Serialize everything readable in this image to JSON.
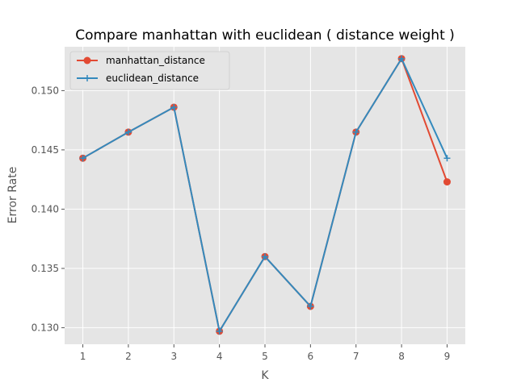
{
  "chart_data": {
    "type": "line",
    "title": "Compare manhattan  with  euclidean ( distance weight )",
    "xlabel": "K",
    "ylabel": "Error Rate",
    "x": [
      1,
      2,
      3,
      4,
      5,
      6,
      7,
      8,
      9
    ],
    "xlim": [
      0.6,
      9.4
    ],
    "ylim": [
      0.1286,
      0.1537
    ],
    "yticks": [
      "0.130",
      "0.135",
      "0.140",
      "0.145",
      "0.150"
    ],
    "ytick_values": [
      0.13,
      0.135,
      0.14,
      0.145,
      0.15
    ],
    "xticks": [
      "1",
      "2",
      "3",
      "4",
      "5",
      "6",
      "7",
      "8",
      "9"
    ],
    "grid": true,
    "legend_position": "top-left",
    "series": [
      {
        "name": "manhattan_distance",
        "color": "#E24A33",
        "marker": "circle",
        "values": [
          0.1443,
          0.1465,
          0.1486,
          0.1297,
          0.136,
          0.1318,
          0.1465,
          0.1527,
          0.1423
        ]
      },
      {
        "name": "euclidean_distance",
        "color": "#348ABD",
        "marker": "plus",
        "values": [
          0.1443,
          0.1465,
          0.1486,
          0.1297,
          0.136,
          0.1318,
          0.1465,
          0.1527,
          0.1443
        ]
      }
    ]
  }
}
